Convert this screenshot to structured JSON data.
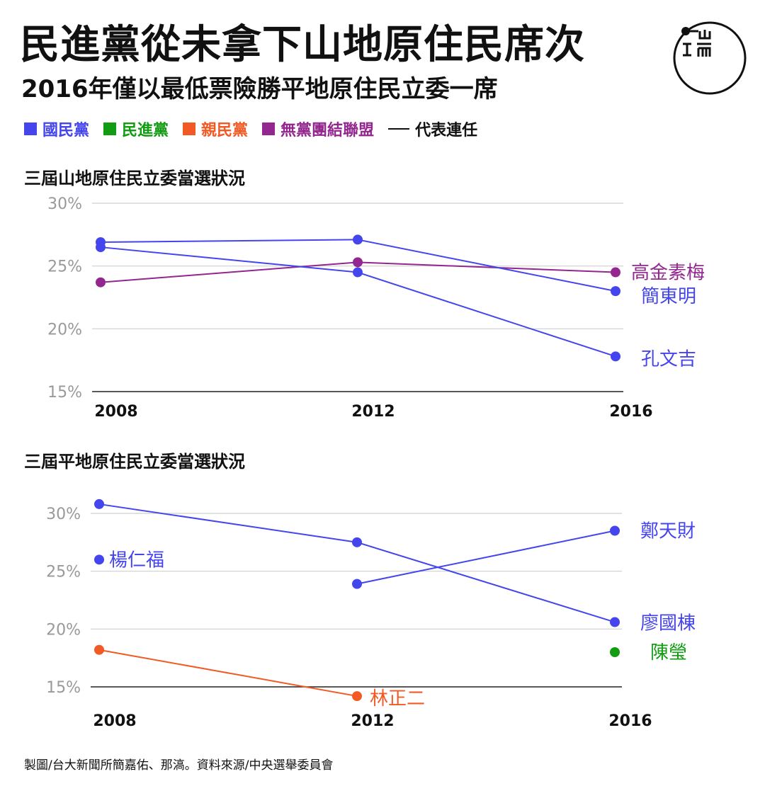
{
  "header": {
    "title": "民進黨從未拿下山地原住民席次",
    "subtitle": "2016年僅以最低票險勝平地原住民立委一席",
    "logo_text": "端"
  },
  "legend": {
    "items": [
      {
        "label": "國民黨",
        "color": "#4545ee"
      },
      {
        "label": "民進黨",
        "color": "#129c12"
      },
      {
        "label": "親民黨",
        "color": "#f15a24"
      },
      {
        "label": "無黨團結聯盟",
        "color": "#93278f"
      }
    ],
    "line_label": "代表連任"
  },
  "chart_data": [
    {
      "type": "line",
      "title": "三屆山地原住民立委當選狀況",
      "x": [
        "2008",
        "2012",
        "2016"
      ],
      "ylim": [
        15,
        30
      ],
      "yticks": [
        "30%",
        "25%",
        "20%",
        "15%"
      ],
      "ytick_values": [
        30,
        25,
        20,
        15
      ],
      "series": [
        {
          "name": "高金素梅",
          "color": "#93278f",
          "values": [
            23.7,
            25.3,
            24.5
          ],
          "label_color": "#93278f"
        },
        {
          "name": "簡東明",
          "color": "#4545ee",
          "values": [
            26.9,
            27.1,
            23.0
          ],
          "label_color": "#4545ee"
        },
        {
          "name": "孔文吉",
          "color": "#4545ee",
          "values": [
            26.5,
            24.5,
            17.8
          ],
          "label_color": "#4545ee"
        }
      ]
    },
    {
      "type": "line",
      "title": "三屆平地原住民立委當選狀況",
      "x": [
        "2008",
        "2012",
        "2016"
      ],
      "ylim": [
        15,
        30
      ],
      "yticks": [
        "30%",
        "25%",
        "20%",
        "15%"
      ],
      "ytick_values": [
        30,
        25,
        20,
        15
      ],
      "series": [
        {
          "name": "廖國棟",
          "color": "#4545ee",
          "values": [
            30.8,
            27.5,
            20.6
          ],
          "label_color": "#4545ee"
        },
        {
          "name": "鄭天財",
          "color": "#4545ee",
          "values": [
            null,
            23.9,
            28.5
          ],
          "label_color": "#4545ee"
        },
        {
          "name": "楊仁福",
          "color": "#4545ee",
          "values": [
            26.0,
            null,
            null
          ],
          "label_color": "#4545ee"
        },
        {
          "name": "林正二",
          "color": "#f15a24",
          "values": [
            18.2,
            14.2,
            null
          ],
          "label_color": "#f15a24"
        },
        {
          "name": "陳瑩",
          "color": "#129c12",
          "values": [
            null,
            null,
            18.0
          ],
          "label_color": "#129c12"
        }
      ]
    }
  ],
  "footer": {
    "text": "製圖/台大新聞所簡嘉佑、那滈。資料來源/中央選舉委員會"
  }
}
